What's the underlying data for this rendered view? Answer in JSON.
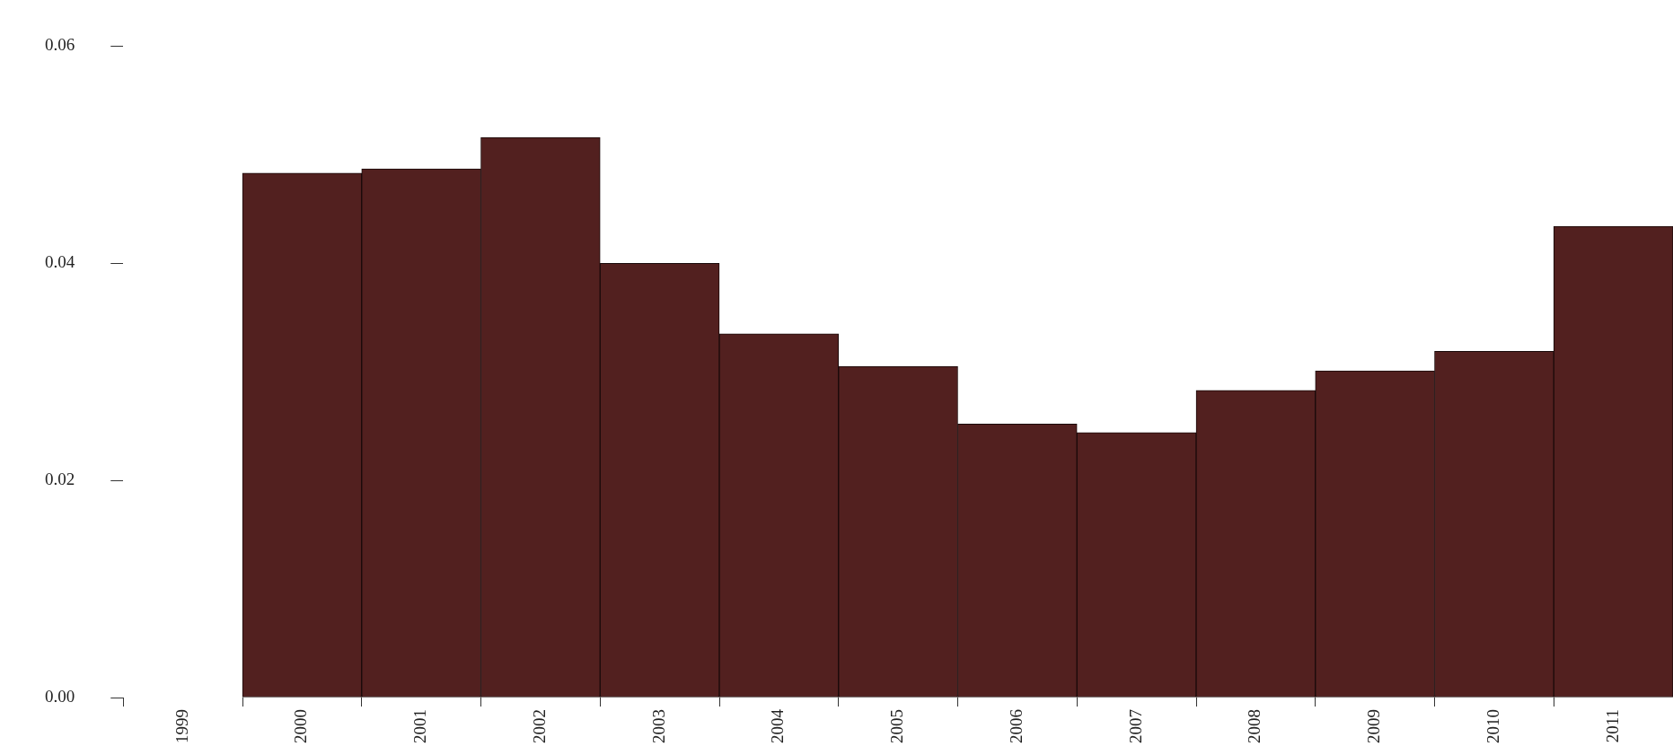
{
  "chart_data": {
    "type": "bar",
    "categories": [
      "1999",
      "2000",
      "2001",
      "2002",
      "2003",
      "2004",
      "2005",
      "2006",
      "2007",
      "2008",
      "2009",
      "2010",
      "2011"
    ],
    "values": [
      0,
      0.0483,
      0.0487,
      0.0516,
      0.04,
      0.0335,
      0.0305,
      0.0252,
      0.0244,
      0.0283,
      0.0301,
      0.0319,
      0.0434
    ],
    "color": "#52201f",
    "ylim": [
      0,
      0.06
    ],
    "yticks": [
      {
        "value": 0,
        "label": "0.00"
      },
      {
        "value": 0.02,
        "label": "0.02"
      },
      {
        "value": 0.04,
        "label": "0.04"
      },
      {
        "value": 0.06,
        "label": "0.06"
      }
    ],
    "grid": false
  }
}
